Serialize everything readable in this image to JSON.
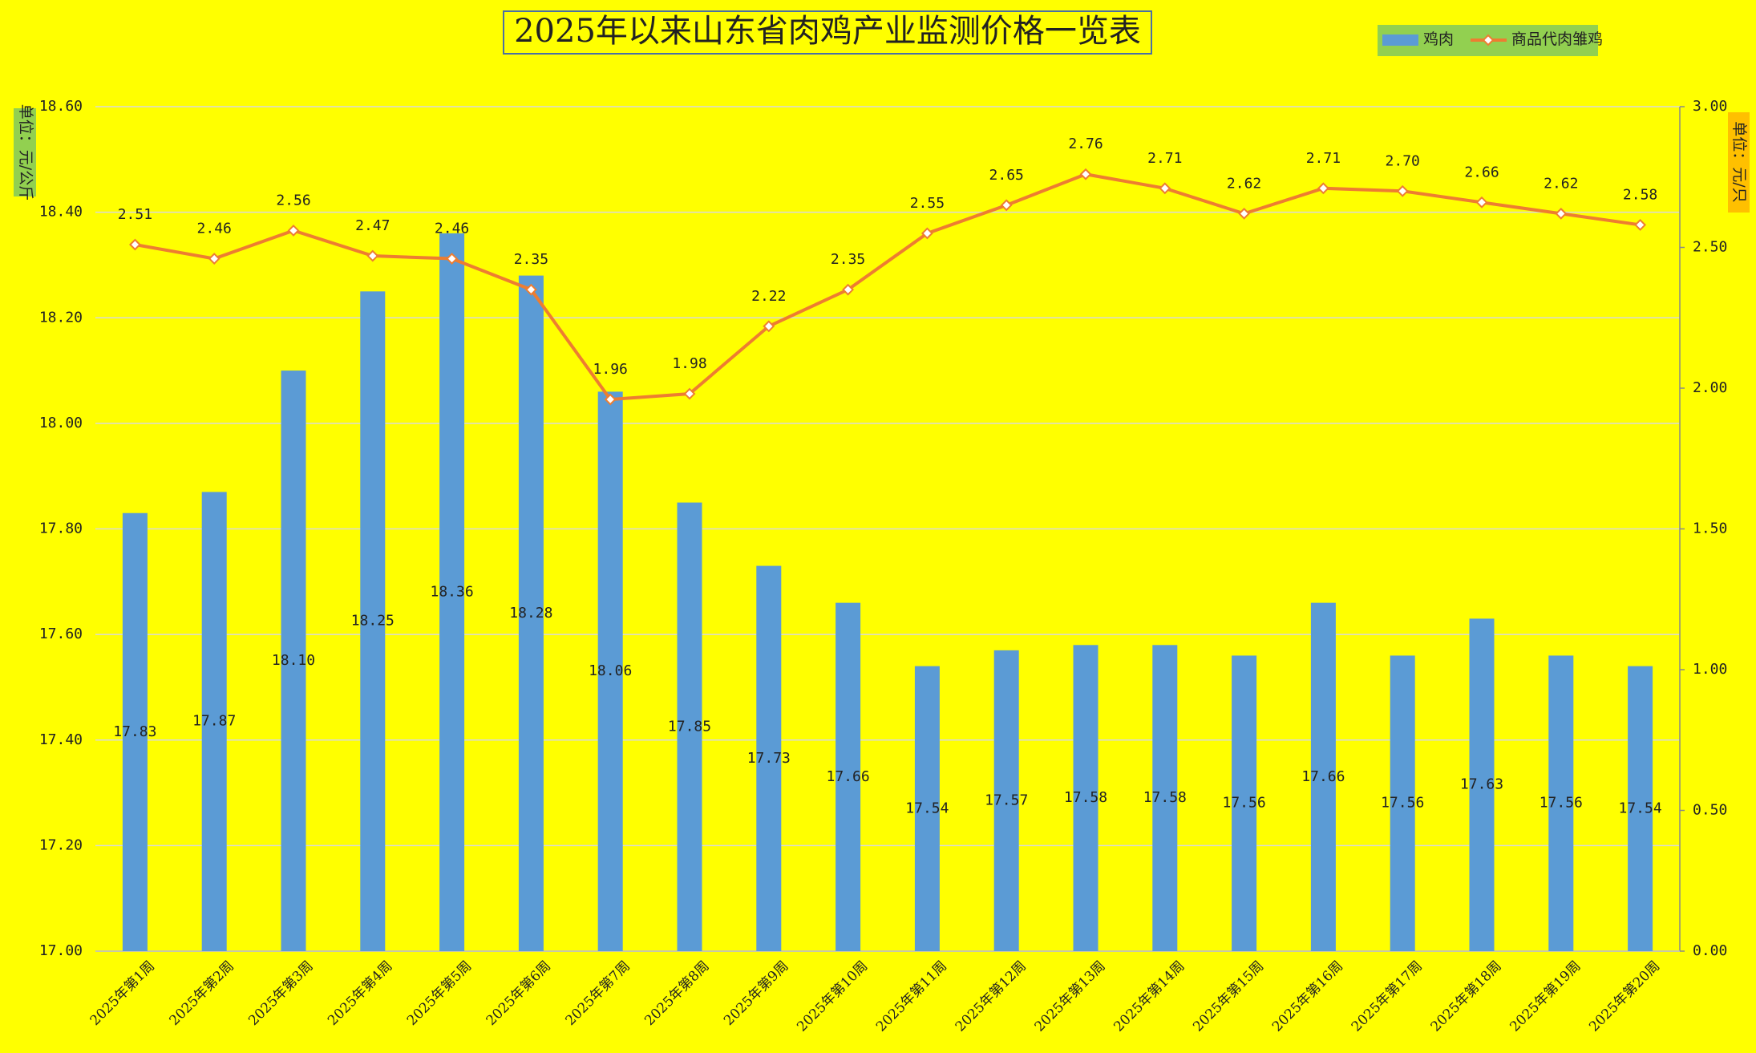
{
  "chart_data": {
    "type": "bar_line",
    "title": "2025年以来山东省肉鸡产业监测价格一览表",
    "y_label": "单位：元/公斤",
    "y2_label": "单位：元/只",
    "categories": [
      "2025年第1周",
      "2025年第2周",
      "2025年第3周",
      "2025年第4周",
      "2025年第5周",
      "2025年第6周",
      "2025年第7周",
      "2025年第8周",
      "2025年第9周",
      "2025年第10周",
      "2025年第11周",
      "2025年第12周",
      "2025年第13周",
      "2025年第14周",
      "2025年第15周",
      "2025年第16周",
      "2025年第17周",
      "2025年第18周",
      "2025年第19周",
      "2025年第20周"
    ],
    "series": [
      {
        "name": "鸡肉",
        "type": "bar",
        "color": "#5b9bd5",
        "values": [
          17.83,
          17.87,
          18.1,
          18.25,
          18.36,
          18.28,
          18.06,
          17.85,
          17.73,
          17.66,
          17.54,
          17.57,
          17.58,
          17.58,
          17.56,
          17.66,
          17.56,
          17.63,
          17.56,
          17.54
        ],
        "value_labels": [
          "17.83",
          "17.87",
          "18.10",
          "18.25",
          "18.36",
          "18.28",
          "18.06",
          "17.85",
          "17.73",
          "17.66",
          "17.54",
          "17.57",
          "17.58",
          "17.58",
          "17.56",
          "17.66",
          "17.56",
          "17.63",
          "17.56",
          "17.54"
        ]
      },
      {
        "name": "商品代肉雏鸡",
        "type": "line",
        "axis": "y2",
        "color": "#ed7d31",
        "values": [
          2.51,
          2.46,
          2.56,
          2.47,
          2.46,
          2.35,
          1.96,
          1.98,
          2.22,
          2.35,
          2.55,
          2.65,
          2.76,
          2.71,
          2.62,
          2.71,
          2.7,
          2.66,
          2.62,
          2.58
        ],
        "value_labels": [
          "2.51",
          "2.46",
          "2.56",
          "2.47",
          "2.46",
          "2.35",
          "1.96",
          "1.98",
          "2.22",
          "2.35",
          "2.55",
          "2.65",
          "2.76",
          "2.71",
          "2.62",
          "2.71",
          "2.70",
          "2.66",
          "2.62",
          "2.58"
        ]
      }
    ],
    "ylim": [
      17.0,
      18.6
    ],
    "yticks": [
      {
        "value": 17.0,
        "label": "17.00"
      },
      {
        "value": 17.2,
        "label": "17.20"
      },
      {
        "value": 17.4,
        "label": "17.40"
      },
      {
        "value": 17.6,
        "label": "17.60"
      },
      {
        "value": 17.8,
        "label": "17.80"
      },
      {
        "value": 18.0,
        "label": "18.00"
      },
      {
        "value": 18.2,
        "label": "18.20"
      },
      {
        "value": 18.4,
        "label": "18.40"
      },
      {
        "value": 18.6,
        "label": "18.60"
      }
    ],
    "y2lim": [
      0,
      3
    ],
    "y2ticks": [
      {
        "value": 0,
        "label": "0.00"
      },
      {
        "value": 0.5,
        "label": "0.50"
      },
      {
        "value": 1,
        "label": "1.00"
      },
      {
        "value": 1.5,
        "label": "1.50"
      },
      {
        "value": 2,
        "label": "2.00"
      },
      {
        "value": 2.5,
        "label": "2.50"
      },
      {
        "value": 3,
        "label": "3.00"
      }
    ],
    "grid": true,
    "legend": "top-right"
  }
}
